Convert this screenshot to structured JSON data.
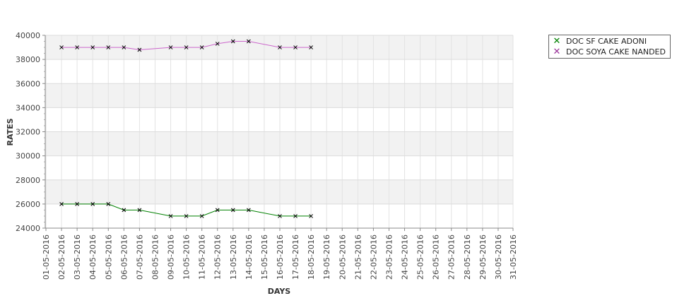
{
  "chart_data": {
    "type": "line",
    "xlabel": "DAYS",
    "ylabel": "RATES",
    "ylim": [
      24000,
      40000
    ],
    "yticks": [
      "24000",
      "26000",
      "28000",
      "30000",
      "32000",
      "34000",
      "36000",
      "38000",
      "40000"
    ],
    "categories": [
      "01-05-2016",
      "02-05-2016",
      "03-05-2016",
      "04-05-2016",
      "05-05-2016",
      "06-05-2016",
      "07-05-2016",
      "08-05-2016",
      "09-05-2016",
      "10-05-2016",
      "11-05-2016",
      "12-05-2016",
      "13-05-2016",
      "14-05-2016",
      "15-05-2016",
      "16-05-2016",
      "17-05-2016",
      "18-05-2016",
      "19-05-2016",
      "20-05-2016",
      "21-05-2016",
      "22-05-2016",
      "23-05-2016",
      "24-05-2016",
      "25-05-2016",
      "26-05-2016",
      "27-05-2016",
      "28-05-2016",
      "29-05-2016",
      "30-05-2016",
      "31-05-2016"
    ],
    "grid": true,
    "legend_position": "top-right",
    "series": [
      {
        "name": "DOC SF CAKE ADONI",
        "color": "#008000",
        "points": [
          {
            "x": "02-05-2016",
            "y": 26000
          },
          {
            "x": "03-05-2016",
            "y": 26000
          },
          {
            "x": "04-05-2016",
            "y": 26000
          },
          {
            "x": "05-05-2016",
            "y": 26000
          },
          {
            "x": "06-05-2016",
            "y": 25500
          },
          {
            "x": "07-05-2016",
            "y": 25500
          },
          {
            "x": "09-05-2016",
            "y": 25000
          },
          {
            "x": "10-05-2016",
            "y": 25000
          },
          {
            "x": "11-05-2016",
            "y": 25000
          },
          {
            "x": "12-05-2016",
            "y": 25500
          },
          {
            "x": "13-05-2016",
            "y": 25500
          },
          {
            "x": "14-05-2016",
            "y": 25500
          },
          {
            "x": "16-05-2016",
            "y": 25000
          },
          {
            "x": "17-05-2016",
            "y": 25000
          },
          {
            "x": "18-05-2016",
            "y": 25000
          }
        ]
      },
      {
        "name": "DOC SOYA CAKE NANDED",
        "color": "#cc66cc",
        "marker_color": "#660066",
        "points": [
          {
            "x": "02-05-2016",
            "y": 39000
          },
          {
            "x": "03-05-2016",
            "y": 39000
          },
          {
            "x": "04-05-2016",
            "y": 39000
          },
          {
            "x": "05-05-2016",
            "y": 39000
          },
          {
            "x": "06-05-2016",
            "y": 39000
          },
          {
            "x": "07-05-2016",
            "y": 38800
          },
          {
            "x": "09-05-2016",
            "y": 39000
          },
          {
            "x": "10-05-2016",
            "y": 39000
          },
          {
            "x": "11-05-2016",
            "y": 39000
          },
          {
            "x": "12-05-2016",
            "y": 39300
          },
          {
            "x": "13-05-2016",
            "y": 39500
          },
          {
            "x": "14-05-2016",
            "y": 39500
          },
          {
            "x": "16-05-2016",
            "y": 39000
          },
          {
            "x": "17-05-2016",
            "y": 39000
          },
          {
            "x": "18-05-2016",
            "y": 39000
          }
        ]
      }
    ]
  }
}
